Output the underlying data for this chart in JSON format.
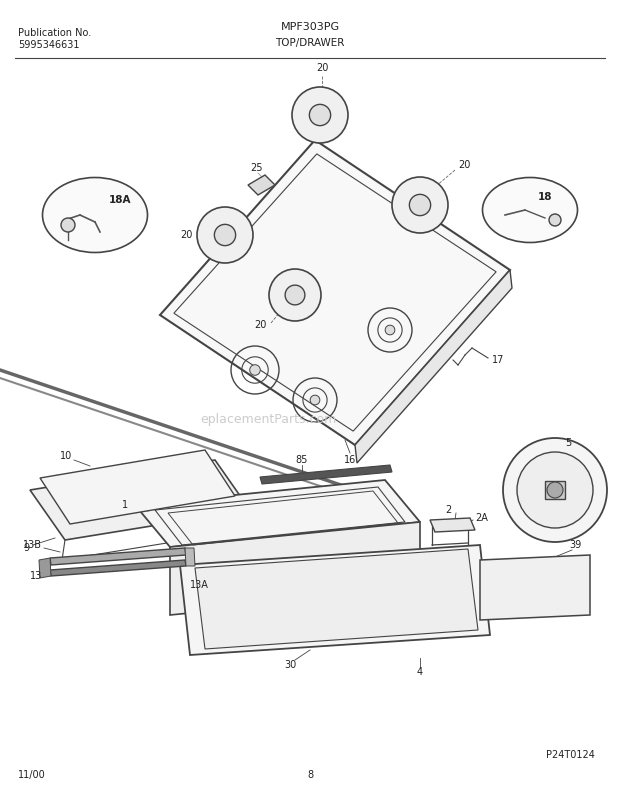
{
  "title_left_line1": "Publication No.",
  "title_left_line2": "5995346631",
  "title_center_top": "MPF303PG",
  "title_center_bottom": "TOP/DRAWER",
  "footer_left": "11/00",
  "footer_center": "8",
  "footer_right": "P24T0124",
  "watermark": "eplacementParts.com",
  "bg_color": "#ffffff",
  "line_color": "#444444",
  "text_color": "#222222"
}
